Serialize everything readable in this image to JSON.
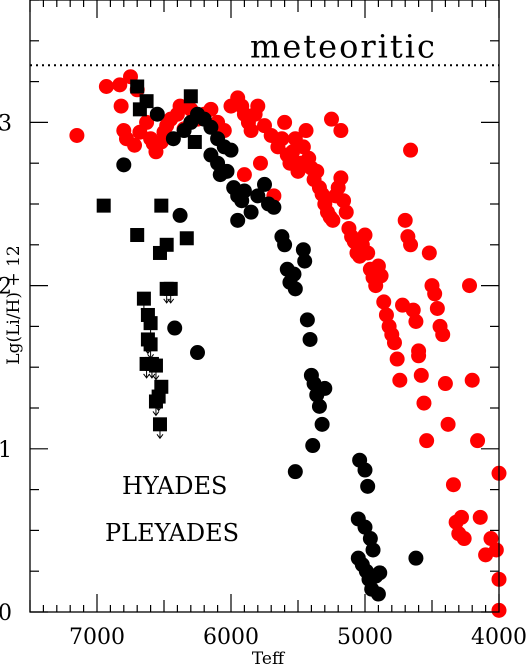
{
  "chart_data": {
    "type": "scatter",
    "title": "",
    "xlabel": "Teff",
    "ylabel": "Lg(Li/H) + 12",
    "xlim": [
      7500,
      4000
    ],
    "ylim": [
      0,
      3.75
    ],
    "x_ticks": [
      7000,
      6000,
      5000,
      4000
    ],
    "y_ticks": [
      0,
      1,
      2,
      3
    ],
    "reference_line": {
      "label": "meteoritic",
      "y": 3.35,
      "style": "dotted"
    },
    "legend_placement": "bottom-left",
    "colors": {
      "HYADES": "#000000",
      "PLEYADES": "#ff0000"
    },
    "series": [
      {
        "name": "HYADES",
        "marker": "circle",
        "points": [
          [
            6800,
            2.74
          ],
          [
            6550,
            3.05
          ],
          [
            6430,
            2.9
          ],
          [
            6350,
            2.95
          ],
          [
            6300,
            3.0
          ],
          [
            6250,
            3.05
          ],
          [
            6200,
            3.02
          ],
          [
            6150,
            2.97
          ],
          [
            6100,
            2.9
          ],
          [
            6050,
            2.85
          ],
          [
            6000,
            2.83
          ],
          [
            6150,
            2.8
          ],
          [
            6100,
            2.75
          ],
          [
            6080,
            2.68
          ],
          [
            6030,
            2.7
          ],
          [
            5980,
            2.6
          ],
          [
            5950,
            2.55
          ],
          [
            5920,
            2.52
          ],
          [
            5900,
            2.58
          ],
          [
            5850,
            2.45
          ],
          [
            5800,
            2.55
          ],
          [
            5750,
            2.62
          ],
          [
            5720,
            2.5
          ],
          [
            5950,
            2.4
          ],
          [
            5680,
            2.48
          ],
          [
            6380,
            2.43
          ],
          [
            6250,
            1.59
          ],
          [
            6420,
            1.74
          ],
          [
            5620,
            2.3
          ],
          [
            5600,
            2.25
          ],
          [
            5580,
            2.1
          ],
          [
            5560,
            2.02
          ],
          [
            5530,
            2.07
          ],
          [
            5520,
            1.98
          ],
          [
            5460,
            2.22
          ],
          [
            5450,
            2.15
          ],
          [
            5430,
            1.79
          ],
          [
            5410,
            1.67
          ],
          [
            5400,
            1.45
          ],
          [
            5380,
            1.4
          ],
          [
            5360,
            1.33
          ],
          [
            5340,
            1.26
          ],
          [
            5320,
            1.15
          ],
          [
            5300,
            1.37
          ],
          [
            5390,
            1.02
          ],
          [
            5520,
            0.86
          ],
          [
            5040,
            0.93
          ],
          [
            5000,
            0.87
          ],
          [
            4980,
            0.77
          ],
          [
            5050,
            0.57
          ],
          [
            5000,
            0.52
          ],
          [
            4960,
            0.45
          ],
          [
            4940,
            0.38
          ],
          [
            5050,
            0.33
          ],
          [
            5020,
            0.29
          ],
          [
            4990,
            0.25
          ],
          [
            4970,
            0.2
          ],
          [
            4950,
            0.14
          ],
          [
            4920,
            0.22
          ],
          [
            4890,
            0.24
          ],
          [
            4900,
            0.11
          ],
          [
            4620,
            0.33
          ]
        ]
      },
      {
        "name": "HYADES (upper limits)",
        "marker": "square",
        "points": [
          [
            6950,
            2.49
          ],
          [
            6700,
            3.22
          ],
          [
            6680,
            3.08
          ],
          [
            6630,
            3.13
          ],
          [
            6300,
            3.16
          ],
          [
            6520,
            2.49
          ],
          [
            6700,
            2.31
          ],
          [
            6330,
            2.29
          ],
          [
            6270,
            2.88
          ],
          [
            6480,
            2.25
          ],
          [
            6530,
            2.2
          ],
          [
            6480,
            1.98
          ],
          [
            6450,
            1.98
          ],
          [
            6650,
            1.92
          ],
          [
            6620,
            1.82
          ],
          [
            6600,
            1.77
          ],
          [
            6620,
            1.67
          ],
          [
            6600,
            1.64
          ],
          [
            6630,
            1.52
          ],
          [
            6590,
            1.52
          ],
          [
            6560,
            1.51
          ],
          [
            6520,
            1.38
          ],
          [
            6540,
            1.32
          ],
          [
            6560,
            1.29
          ],
          [
            6530,
            1.15
          ]
        ]
      },
      {
        "name": "PLEYADES",
        "marker": "circle",
        "points": [
          [
            7150,
            2.92
          ],
          [
            6930,
            3.22
          ],
          [
            6830,
            3.23
          ],
          [
            6750,
            3.28
          ],
          [
            6700,
            3.2
          ],
          [
            6820,
            3.1
          ],
          [
            6800,
            2.95
          ],
          [
            6780,
            2.9
          ],
          [
            6720,
            2.86
          ],
          [
            6680,
            2.94
          ],
          [
            6630,
            3.0
          ],
          [
            6600,
            2.9
          ],
          [
            6580,
            2.87
          ],
          [
            6560,
            2.82
          ],
          [
            6520,
            2.88
          ],
          [
            6500,
            2.94
          ],
          [
            6480,
            2.98
          ],
          [
            6450,
            3.02
          ],
          [
            6400,
            3.05
          ],
          [
            6380,
            3.1
          ],
          [
            6350,
            2.96
          ],
          [
            6300,
            3.08
          ],
          [
            6250,
            3.02
          ],
          [
            6200,
            3.05
          ],
          [
            6150,
            3.08
          ],
          [
            6100,
            3.0
          ],
          [
            6050,
            2.95
          ],
          [
            6000,
            3.1
          ],
          [
            5950,
            3.15
          ],
          [
            5920,
            3.1
          ],
          [
            5900,
            3.05
          ],
          [
            5870,
            3.0
          ],
          [
            5850,
            2.95
          ],
          [
            5820,
            3.05
          ],
          [
            5800,
            3.1
          ],
          [
            5750,
            2.98
          ],
          [
            5700,
            2.92
          ],
          [
            5650,
            2.85
          ],
          [
            5620,
            2.9
          ],
          [
            5600,
            3.0
          ],
          [
            5580,
            2.8
          ],
          [
            5560,
            2.75
          ],
          [
            5540,
            2.82
          ],
          [
            5520,
            2.9
          ],
          [
            5500,
            2.7
          ],
          [
            5480,
            2.75
          ],
          [
            5460,
            2.85
          ],
          [
            5440,
            2.95
          ],
          [
            5420,
            2.78
          ],
          [
            5400,
            2.72
          ],
          [
            5380,
            2.65
          ],
          [
            5360,
            2.7
          ],
          [
            5340,
            2.6
          ],
          [
            5320,
            2.56
          ],
          [
            5300,
            2.5
          ],
          [
            5280,
            2.45
          ],
          [
            5260,
            2.42
          ],
          [
            5240,
            2.4
          ],
          [
            5220,
            2.55
          ],
          [
            5200,
            2.6
          ],
          [
            5180,
            2.66
          ],
          [
            5160,
            2.52
          ],
          [
            5140,
            2.45
          ],
          [
            5120,
            2.35
          ],
          [
            5100,
            2.3
          ],
          [
            5080,
            2.27
          ],
          [
            5060,
            2.2
          ],
          [
            5040,
            2.18
          ],
          [
            5020,
            2.25
          ],
          [
            5000,
            2.31
          ],
          [
            4980,
            2.2
          ],
          [
            4960,
            2.1
          ],
          [
            4940,
            2.05
          ],
          [
            4920,
            2.0
          ],
          [
            4900,
            2.12
          ],
          [
            4880,
            2.06
          ],
          [
            4860,
            1.9
          ],
          [
            4840,
            1.82
          ],
          [
            4820,
            1.75
          ],
          [
            4800,
            1.7
          ],
          [
            4780,
            1.65
          ],
          [
            4760,
            1.55
          ],
          [
            4740,
            1.42
          ],
          [
            4720,
            1.88
          ],
          [
            4700,
            2.4
          ],
          [
            4680,
            2.3
          ],
          [
            4660,
            2.25
          ],
          [
            4640,
            1.85
          ],
          [
            4620,
            1.78
          ],
          [
            4600,
            1.6
          ],
          [
            4580,
            1.45
          ],
          [
            4560,
            1.28
          ],
          [
            4540,
            1.05
          ],
          [
            4520,
            2.2
          ],
          [
            4500,
            2.0
          ],
          [
            4480,
            1.95
          ],
          [
            4460,
            1.86
          ],
          [
            4440,
            1.75
          ],
          [
            4420,
            1.7
          ],
          [
            4400,
            1.4
          ],
          [
            4380,
            1.15
          ],
          [
            4340,
            0.78
          ],
          [
            4320,
            0.55
          ],
          [
            4300,
            0.48
          ],
          [
            4280,
            0.58
          ],
          [
            4260,
            0.45
          ],
          [
            4220,
            2.0
          ],
          [
            4200,
            1.42
          ],
          [
            4160,
            1.05
          ],
          [
            4140,
            0.58
          ],
          [
            4100,
            0.35
          ],
          [
            4060,
            0.45
          ],
          [
            4020,
            0.38
          ],
          [
            4000,
            0.2
          ],
          [
            4000,
            0.85
          ],
          [
            4000,
            0.01
          ],
          [
            5900,
            2.68
          ],
          [
            5780,
            2.75
          ],
          [
            5680,
            2.55
          ],
          [
            5250,
            3.02
          ],
          [
            5180,
            2.95
          ],
          [
            4660,
            2.83
          ],
          [
            4600,
            1.57
          ]
        ]
      }
    ]
  }
}
